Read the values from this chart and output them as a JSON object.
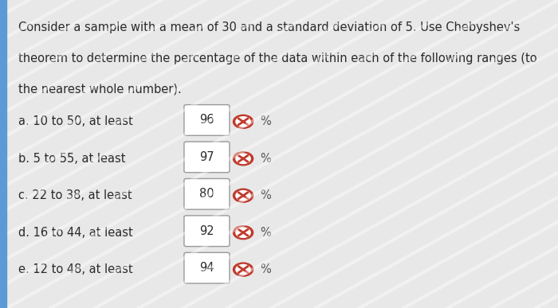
{
  "title_line1": "Consider a sample with a mean of 30 and a standard deviation of 5. Use Chebyshev's",
  "title_line2": "theorem to determine the percentage of the data within each of the following ranges (to",
  "title_line3": "the nearest whole number).",
  "bold_words": [
    "30",
    "5"
  ],
  "items": [
    {
      "label": "a. 10 to 50, at least",
      "value": "96"
    },
    {
      "label": "b. 5 to 55, at least",
      "value": "97"
    },
    {
      "label": "c. 22 to 38, at least",
      "value": "80"
    },
    {
      "label": "d. 16 to 44, at least",
      "value": "92"
    },
    {
      "label": "e. 12 to 48, at least",
      "value": "94"
    }
  ],
  "bg_color": "#e8e8e8",
  "text_color": "#2a2a2a",
  "box_color": "#ffffff",
  "box_edge_color": "#999999",
  "icon_color": "#c0392b",
  "percent_color": "#555555",
  "left_bar_color": "#5b9bd5",
  "font_size_body": 10.5,
  "font_size_item": 10.5
}
